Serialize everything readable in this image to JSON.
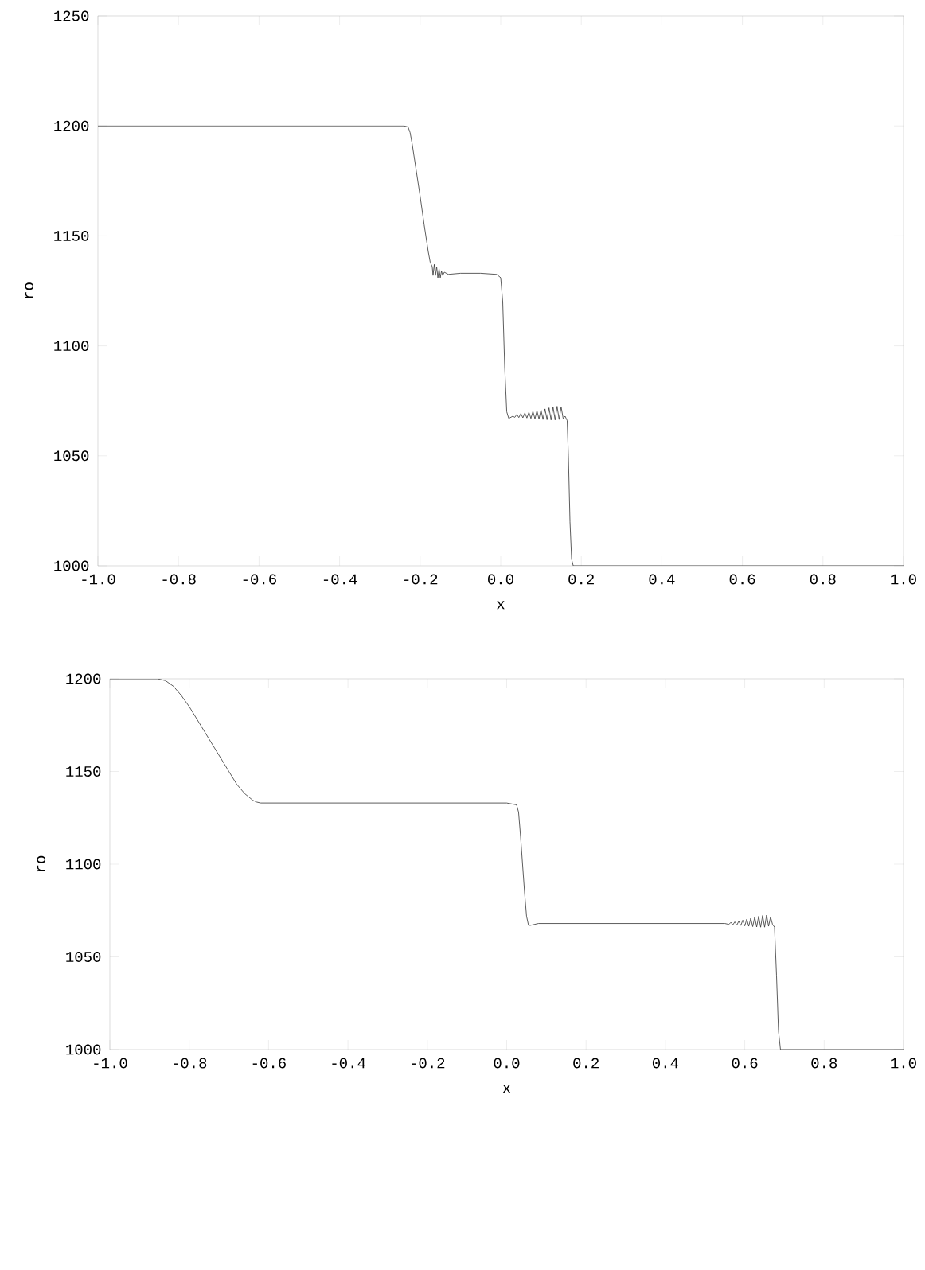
{
  "chart_data": [
    {
      "type": "line",
      "xlabel": "x",
      "ylabel": "ro",
      "color": "#333333",
      "x": [
        -1.0,
        -0.24,
        -0.23,
        -0.225,
        -0.22,
        -0.21,
        -0.2,
        -0.19,
        -0.18,
        -0.175,
        -0.17,
        -0.168,
        -0.165,
        -0.162,
        -0.159,
        -0.156,
        -0.153,
        -0.15,
        -0.147,
        -0.144,
        -0.14,
        -0.13,
        -0.1,
        -0.05,
        -0.01,
        0.0,
        0.005,
        0.01,
        0.015,
        0.02,
        0.03,
        0.035,
        0.04,
        0.045,
        0.05,
        0.055,
        0.06,
        0.065,
        0.07,
        0.075,
        0.08,
        0.085,
        0.09,
        0.095,
        0.1,
        0.105,
        0.11,
        0.115,
        0.12,
        0.125,
        0.13,
        0.135,
        0.14,
        0.145,
        0.15,
        0.155,
        0.16,
        0.165,
        0.168,
        0.172,
        0.176,
        0.18,
        1.0
      ],
      "values": [
        1200,
        1200,
        1199.5,
        1197,
        1192,
        1180,
        1168,
        1155,
        1143,
        1138,
        1136,
        1132,
        1137,
        1132,
        1136,
        1131,
        1135,
        1131,
        1134,
        1132,
        1133.5,
        1132.5,
        1133,
        1133,
        1132.5,
        1131,
        1120,
        1090,
        1070,
        1067,
        1068,
        1067.5,
        1068.8,
        1067.4,
        1069.2,
        1067.3,
        1069.5,
        1067.2,
        1069.8,
        1067,
        1070.2,
        1066.8,
        1070.5,
        1066.7,
        1070.9,
        1066.5,
        1071.3,
        1066.4,
        1071.8,
        1066.3,
        1072.2,
        1066.3,
        1072.5,
        1066.5,
        1072.3,
        1067,
        1068,
        1066,
        1050,
        1020,
        1003,
        1000,
        1000
      ],
      "xlim": [
        -1.0,
        1.0
      ],
      "ylim": [
        1000,
        1250
      ],
      "xticks": [
        {
          "value": -1.0,
          "label": "-1.0"
        },
        -0.8,
        -0.6,
        -0.4,
        -0.2,
        {
          "value": 0.0,
          "label": "0.0"
        },
        0.2,
        0.4,
        0.6,
        0.8,
        {
          "value": 1.0,
          "label": "1.0"
        }
      ],
      "yticks": [
        1000,
        1050,
        1100,
        1150,
        1200,
        1250
      ]
    },
    {
      "type": "line",
      "xlabel": "x",
      "ylabel": "ro",
      "color": "#333333",
      "x": [
        -1.0,
        -0.88,
        -0.86,
        -0.84,
        -0.82,
        -0.8,
        -0.78,
        -0.76,
        -0.74,
        -0.72,
        -0.7,
        -0.68,
        -0.66,
        -0.64,
        -0.63,
        -0.62,
        0.0,
        0.025,
        0.03,
        0.035,
        0.04,
        0.045,
        0.05,
        0.055,
        0.06,
        0.08,
        0.5,
        0.55,
        0.56,
        0.565,
        0.57,
        0.575,
        0.58,
        0.585,
        0.59,
        0.595,
        0.6,
        0.605,
        0.61,
        0.615,
        0.62,
        0.625,
        0.63,
        0.635,
        0.64,
        0.645,
        0.65,
        0.655,
        0.66,
        0.665,
        0.67,
        0.675,
        0.68,
        0.685,
        0.69,
        1.0
      ],
      "values": [
        1200,
        1200,
        1199,
        1196,
        1191,
        1185,
        1178,
        1171,
        1164,
        1157,
        1150,
        1143,
        1138,
        1134.5,
        1133.5,
        1133,
        1133,
        1132,
        1128,
        1115,
        1100,
        1085,
        1072,
        1067,
        1067,
        1068,
        1068,
        1068,
        1067.5,
        1068.6,
        1067.3,
        1068.9,
        1067.1,
        1069.3,
        1066.9,
        1069.8,
        1066.7,
        1070.3,
        1066.5,
        1070.8,
        1066.3,
        1071.4,
        1066.1,
        1071.9,
        1066,
        1072.3,
        1066,
        1072.5,
        1066.5,
        1071.5,
        1067.5,
        1066,
        1040,
        1010,
        1000,
        1000
      ],
      "xlim": [
        -1.0,
        1.0
      ],
      "ylim": [
        1000,
        1200
      ],
      "xticks": [
        {
          "value": -1.0,
          "label": "-1.0"
        },
        -0.8,
        -0.6,
        -0.4,
        -0.2,
        {
          "value": 0.0,
          "label": "0.0"
        },
        0.2,
        0.4,
        0.6,
        0.8,
        {
          "value": 1.0,
          "label": "1.0"
        }
      ],
      "yticks": [
        1000,
        1050,
        1100,
        1150,
        1200
      ]
    }
  ]
}
